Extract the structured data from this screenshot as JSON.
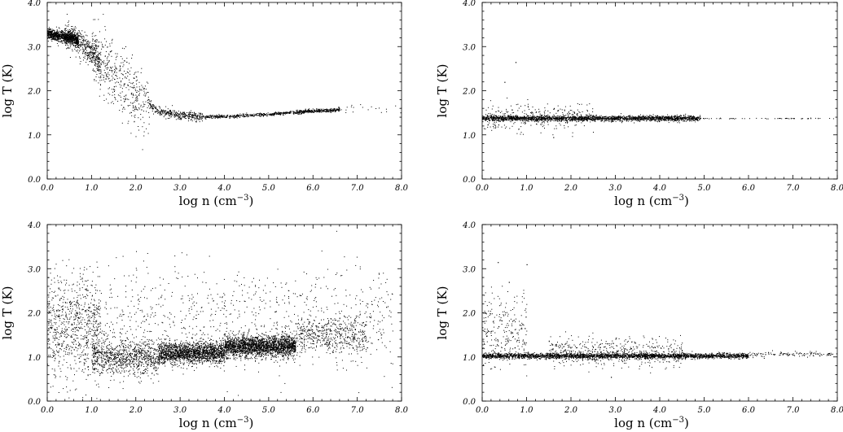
{
  "chart_data": [
    {
      "type": "scatter",
      "panel": "top-left",
      "xlabel_main": "log n (cm",
      "xlabel_sup": "−3",
      "xlabel_close": ")",
      "ylabel": "log T (K)",
      "xlim": [
        0,
        8
      ],
      "ylim": [
        0,
        4
      ],
      "xticks": [
        "0.0",
        "1.0",
        "2.0",
        "3.0",
        "4.0",
        "5.0",
        "6.0",
        "7.0",
        "8.0"
      ],
      "yticks": [
        "0.0",
        "1.0",
        "2.0",
        "3.0",
        "4.0"
      ],
      "distribution": [
        {
          "x_range": [
            0.0,
            0.7
          ],
          "y_mean": 3.28,
          "y_spread": 0.06,
          "count": 900
        },
        {
          "x_range": [
            0.4,
            1.2
          ],
          "y_mean": 2.95,
          "y_spread": 0.15,
          "count": 500
        },
        {
          "x_range": [
            1.0,
            2.3
          ],
          "y_mean": 2.3,
          "y_spread": 0.35,
          "count": 450
        },
        {
          "x_range": [
            2.3,
            3.5
          ],
          "y_mean": 1.5,
          "y_spread": 0.05,
          "count": 350
        },
        {
          "x_range": [
            3.5,
            5.0
          ],
          "y_mean": 1.43,
          "y_spread": 0.02,
          "count": 300
        },
        {
          "x_range": [
            5.0,
            6.6
          ],
          "y_mean": 1.53,
          "y_spread": 0.02,
          "count": 450
        },
        {
          "x_range": [
            6.6,
            8.0
          ],
          "y_mean": 1.6,
          "y_spread": 0.06,
          "count": 20
        }
      ],
      "trend_x": [
        0.0,
        0.6,
        1.0,
        1.5,
        2.0,
        2.5,
        3.0,
        3.5,
        4.0,
        5.0,
        6.0,
        6.6
      ],
      "trend_y": [
        3.3,
        3.2,
        2.85,
        2.4,
        1.9,
        1.55,
        1.45,
        1.42,
        1.42,
        1.47,
        1.55,
        1.58
      ]
    },
    {
      "type": "scatter",
      "panel": "top-right",
      "xlabel_main": "log n (cm",
      "xlabel_sup": "−3",
      "xlabel_close": ")",
      "ylabel": "log T (K)",
      "xlim": [
        0,
        8
      ],
      "ylim": [
        0,
        4
      ],
      "xticks": [
        "0.0",
        "1.0",
        "2.0",
        "3.0",
        "4.0",
        "5.0",
        "6.0",
        "7.0",
        "8.0"
      ],
      "yticks": [
        "0.0",
        "1.0",
        "2.0",
        "3.0",
        "4.0"
      ],
      "distribution": [
        {
          "x_range": [
            0.0,
            4.9
          ],
          "y_mean": 1.38,
          "y_spread": 0.03,
          "count": 2200
        },
        {
          "x_range": [
            0.0,
            2.5
          ],
          "y_mean": 1.4,
          "y_spread": 0.15,
          "count": 300
        },
        {
          "x_range": [
            4.9,
            8.0
          ],
          "y_mean": 1.38,
          "y_spread": 0.005,
          "count": 60
        }
      ],
      "outliers": [
        [
          0.75,
          2.65
        ],
        [
          0.5,
          2.2
        ],
        [
          1.6,
          0.95
        ]
      ]
    },
    {
      "type": "scatter",
      "panel": "bottom-left",
      "xlabel_main": "log n (cm",
      "xlabel_sup": "−3",
      "xlabel_close": ")",
      "ylabel": "log T (K)",
      "xlim": [
        0,
        8
      ],
      "ylim": [
        0,
        4
      ],
      "xticks": [
        "0.0",
        "1.0",
        "2.0",
        "3.0",
        "4.0",
        "5.0",
        "6.0",
        "7.0",
        "8.0"
      ],
      "yticks": [
        "0.0",
        "1.0",
        "2.0",
        "3.0",
        "4.0"
      ],
      "distribution": [
        {
          "x_range": [
            0.0,
            1.2
          ],
          "y_mean": 1.7,
          "y_spread": 0.55,
          "count": 700
        },
        {
          "x_range": [
            1.0,
            2.5
          ],
          "y_mean": 1.0,
          "y_spread": 0.2,
          "count": 900
        },
        {
          "x_range": [
            2.5,
            4.0
          ],
          "y_mean": 1.1,
          "y_spread": 0.12,
          "count": 1800
        },
        {
          "x_range": [
            4.0,
            5.6
          ],
          "y_mean": 1.25,
          "y_spread": 0.12,
          "count": 2200
        },
        {
          "x_range": [
            5.6,
            7.2
          ],
          "y_mean": 1.5,
          "y_spread": 0.2,
          "count": 500
        },
        {
          "x_range": [
            0.5,
            7.8
          ],
          "y_mean": 1.9,
          "y_spread": 0.6,
          "count": 900
        }
      ]
    },
    {
      "type": "scatter",
      "panel": "bottom-right",
      "xlabel_main": "log n (cm",
      "xlabel_sup": "−3",
      "xlabel_close": ")",
      "ylabel": "log T (K)",
      "xlim": [
        0,
        8
      ],
      "ylim": [
        0,
        4
      ],
      "xticks": [
        "0.0",
        "1.0",
        "2.0",
        "3.0",
        "4.0",
        "5.0",
        "6.0",
        "7.0",
        "8.0"
      ],
      "yticks": [
        "0.0",
        "1.0",
        "2.0",
        "3.0",
        "4.0"
      ],
      "distribution": [
        {
          "x_range": [
            0.0,
            6.0
          ],
          "y_mean": 1.03,
          "y_spread": 0.03,
          "count": 2600
        },
        {
          "x_range": [
            1.5,
            4.5
          ],
          "y_mean": 1.12,
          "y_spread": 0.18,
          "count": 500
        },
        {
          "x_range": [
            0.0,
            1.0
          ],
          "y_mean": 1.6,
          "y_spread": 0.45,
          "count": 250
        },
        {
          "x_range": [
            6.0,
            8.0
          ],
          "y_mean": 1.07,
          "y_spread": 0.03,
          "count": 120
        }
      ],
      "outliers": [
        [
          0.35,
          3.15
        ],
        [
          1.0,
          3.1
        ],
        [
          0.6,
          2.7
        ],
        [
          2.9,
          0.55
        ]
      ]
    }
  ]
}
